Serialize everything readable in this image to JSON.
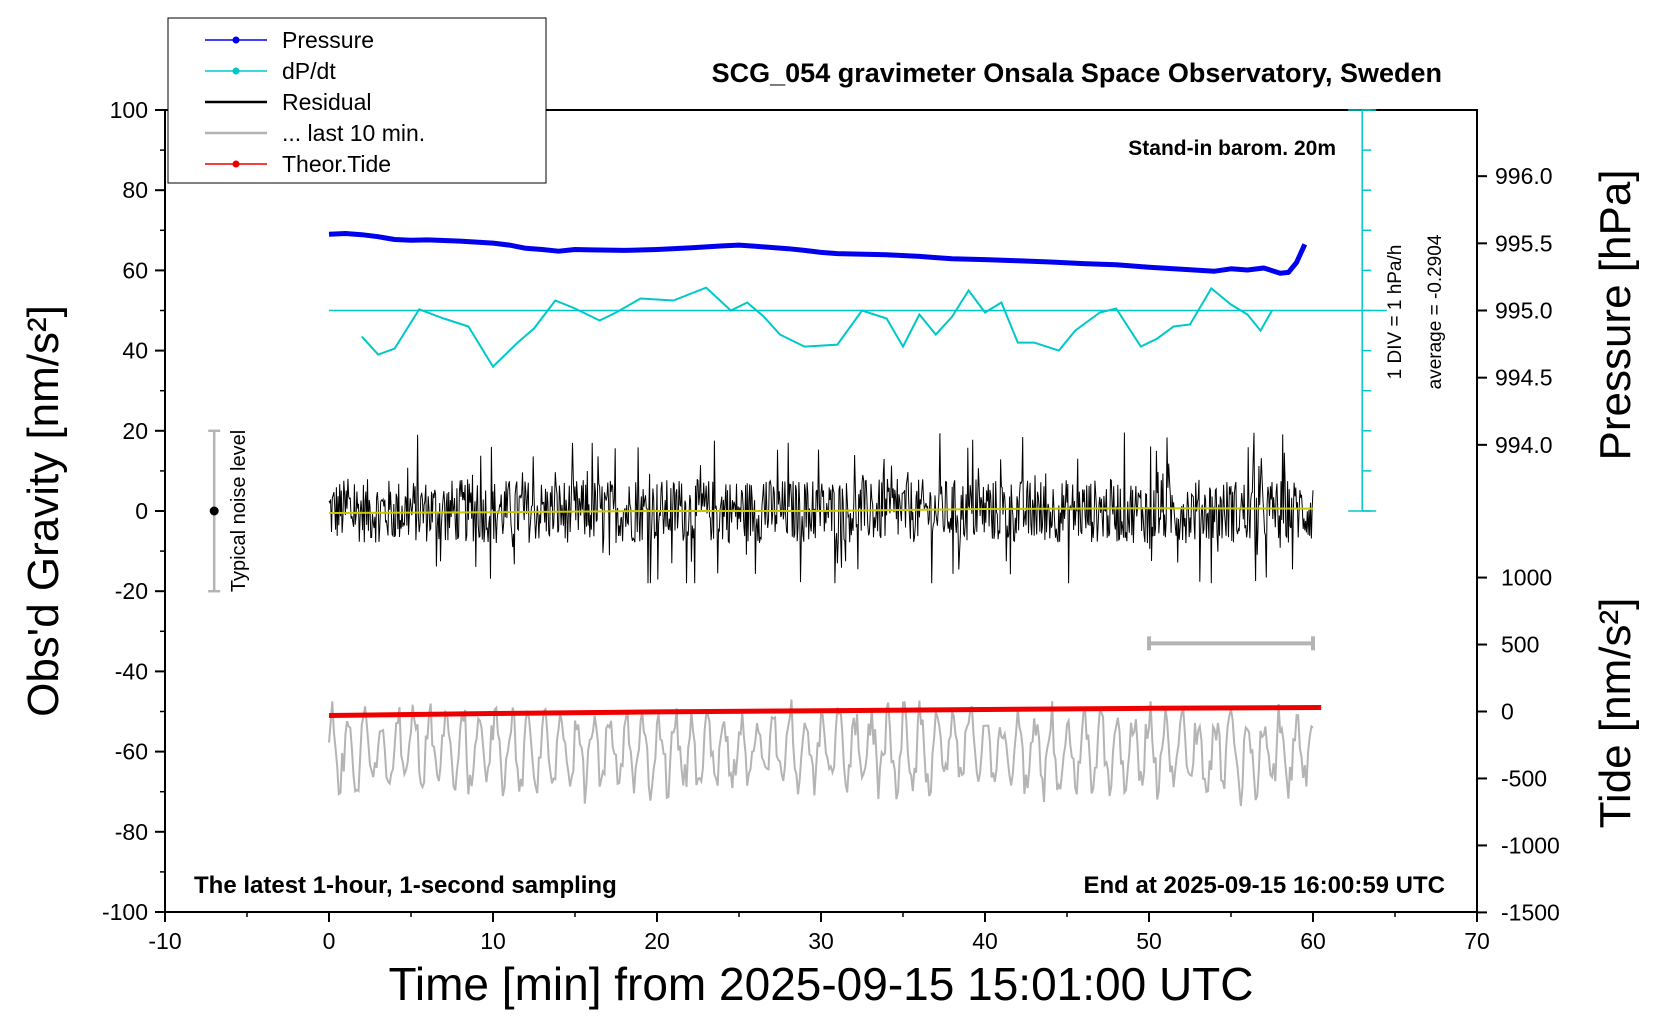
{
  "chart_data": {
    "type": "line",
    "title": "SCG_054 gravimeter Onsala Space Observatory, Sweden",
    "xlabel": "Time [min] from 2025-09-15 15:01:00 UTC",
    "ylabel_left": "Obs'd Gravity [nm/s²]",
    "ylabel_right_top": "Pressure [hPa]",
    "ylabel_right_bottom": "Tide [nm/s²]",
    "xlim": [
      -10,
      70
    ],
    "ylim_left": [
      -100,
      100
    ],
    "x_ticks": [
      -10,
      0,
      10,
      20,
      30,
      40,
      50,
      60,
      70
    ],
    "x_tick_labels": [
      "-10",
      "0",
      "10",
      "20",
      "30",
      "40",
      "50",
      "60",
      "70"
    ],
    "y_ticks_left": [
      -100,
      -80,
      -60,
      -40,
      -20,
      0,
      20,
      40,
      60,
      80,
      100
    ],
    "y_tick_labels_left": [
      "-100",
      "-80",
      "-60",
      "-40",
      "-20",
      "0",
      "20",
      "40",
      "60",
      "80",
      "100"
    ],
    "pressure_axis": {
      "ticks": [
        994.0,
        994.5,
        995.0,
        995.5,
        996.0
      ],
      "tick_labels": [
        "994.0",
        "994.5",
        "995.0",
        "995.5",
        "996.0"
      ]
    },
    "tide_axis": {
      "ticks": [
        -1500,
        -1000,
        -500,
        0,
        500,
        1000
      ],
      "tick_labels": [
        "-1500",
        "-1000",
        "-500",
        "0",
        "500",
        "1000"
      ]
    },
    "legend": {
      "position": "top-left",
      "entries": [
        {
          "label": "Pressure",
          "color": "#0000ee",
          "marker": true
        },
        {
          "label": "dP/dt",
          "color": "#00c8c8",
          "marker": true
        },
        {
          "label": "Residual",
          "color": "#000000",
          "marker": false
        },
        {
          "label": "... last 10 min.",
          "color": "#b4b4b4",
          "marker": false
        },
        {
          "label": "Theor.Tide",
          "color": "#ee0000",
          "marker": true
        }
      ]
    },
    "annotations": {
      "barometer": "Stand-in barom. 20m",
      "div_label": "1 DIV = 1 hPa/h",
      "average_label": "average = -0.2904",
      "noise_label": "Typical noise level",
      "bottom_left": "The latest 1-hour, 1-second sampling",
      "bottom_right": "End at 2025-09-15 16:00:59 UTC"
    },
    "noise_bar": {
      "x": -7,
      "y_center": 0,
      "y_min": -20,
      "y_max": 20
    },
    "grey_scale_bar": {
      "x_start": 50,
      "x_end": 60,
      "y": -33
    },
    "dpdt_ruler": {
      "x": 63,
      "y_min": 0,
      "y_max": 100,
      "baseline_y": 50,
      "div_step": 10
    },
    "series": [
      {
        "name": "Pressure",
        "color": "#0000ee",
        "x": [
          0,
          1,
          2,
          3,
          4,
          5,
          6,
          8,
          10,
          11,
          12,
          13,
          14,
          15,
          16,
          18,
          20,
          22,
          24,
          25,
          26,
          27,
          28,
          29,
          30,
          31,
          32,
          34,
          36,
          37,
          38,
          40,
          42,
          44,
          46,
          48,
          50,
          52,
          54,
          55,
          56,
          57,
          58,
          58.5,
          59,
          59.5
        ],
        "values": [
          69,
          69.2,
          68.9,
          68.4,
          67.7,
          67.5,
          67.6,
          67.3,
          66.8,
          66.3,
          65.5,
          65.2,
          64.8,
          65.2,
          65.1,
          65,
          65.2,
          65.6,
          66.1,
          66.3,
          66,
          65.7,
          65.4,
          65,
          64.5,
          64.2,
          64.1,
          63.9,
          63.5,
          63.2,
          62.9,
          62.7,
          62.4,
          62.1,
          61.7,
          61.4,
          60.8,
          60.3,
          59.8,
          60.4,
          60.1,
          60.6,
          59.3,
          59.5,
          62,
          66.5
        ]
      },
      {
        "name": "dP/dt",
        "color": "#00c8c8",
        "x": [
          2,
          3,
          4,
          5.5,
          7,
          8.5,
          10,
          11.5,
          12.5,
          13.8,
          15,
          16.5,
          17.5,
          19,
          21,
          23,
          24.5,
          25.5,
          26.5,
          27.5,
          29,
          31,
          32.5,
          34,
          35,
          36,
          37,
          38,
          39,
          40,
          41,
          42,
          43,
          44.5,
          45.5,
          47,
          48,
          49.5,
          50.5,
          51.5,
          52.5,
          53.8,
          55,
          56,
          56.8,
          57.5
        ],
        "values": [
          43.5,
          39,
          40.5,
          50.3,
          48,
          46,
          36,
          42,
          45.5,
          52.5,
          50.5,
          47.5,
          49.5,
          53,
          52.5,
          55.7,
          50,
          52,
          48.5,
          44,
          41,
          41.5,
          50,
          48,
          41,
          49,
          44,
          48.5,
          55,
          49.5,
          52,
          42,
          42,
          40,
          45,
          49.5,
          50.5,
          41,
          43,
          46,
          46.5,
          55.5,
          51.5,
          49,
          45,
          50
        ]
      },
      {
        "name": "Residual",
        "color": "#000000",
        "x": [
          0,
          60
        ],
        "values": [
          0,
          0
        ],
        "amplitude_range": [
          -18,
          20
        ]
      },
      {
        "name": "Residual mean",
        "color": "#c8c800",
        "x": [
          0,
          10,
          20,
          30,
          40,
          50,
          60
        ],
        "values": [
          -0.5,
          -0.3,
          0,
          0,
          0.5,
          0.7,
          0.6
        ]
      },
      {
        "name": "... last 10 min.",
        "color": "#b4b4b4",
        "x": [
          0,
          60
        ],
        "values": [
          -60,
          -60
        ],
        "amplitude_range": [
          -78,
          -47
        ]
      },
      {
        "name": "Theor.Tide",
        "color": "#ee0000",
        "x": [
          0,
          10,
          20,
          30,
          40,
          50,
          60.5
        ],
        "values": [
          -51,
          -50.5,
          -50.1,
          -49.8,
          -49.5,
          -49.2,
          -49
        ]
      }
    ]
  }
}
